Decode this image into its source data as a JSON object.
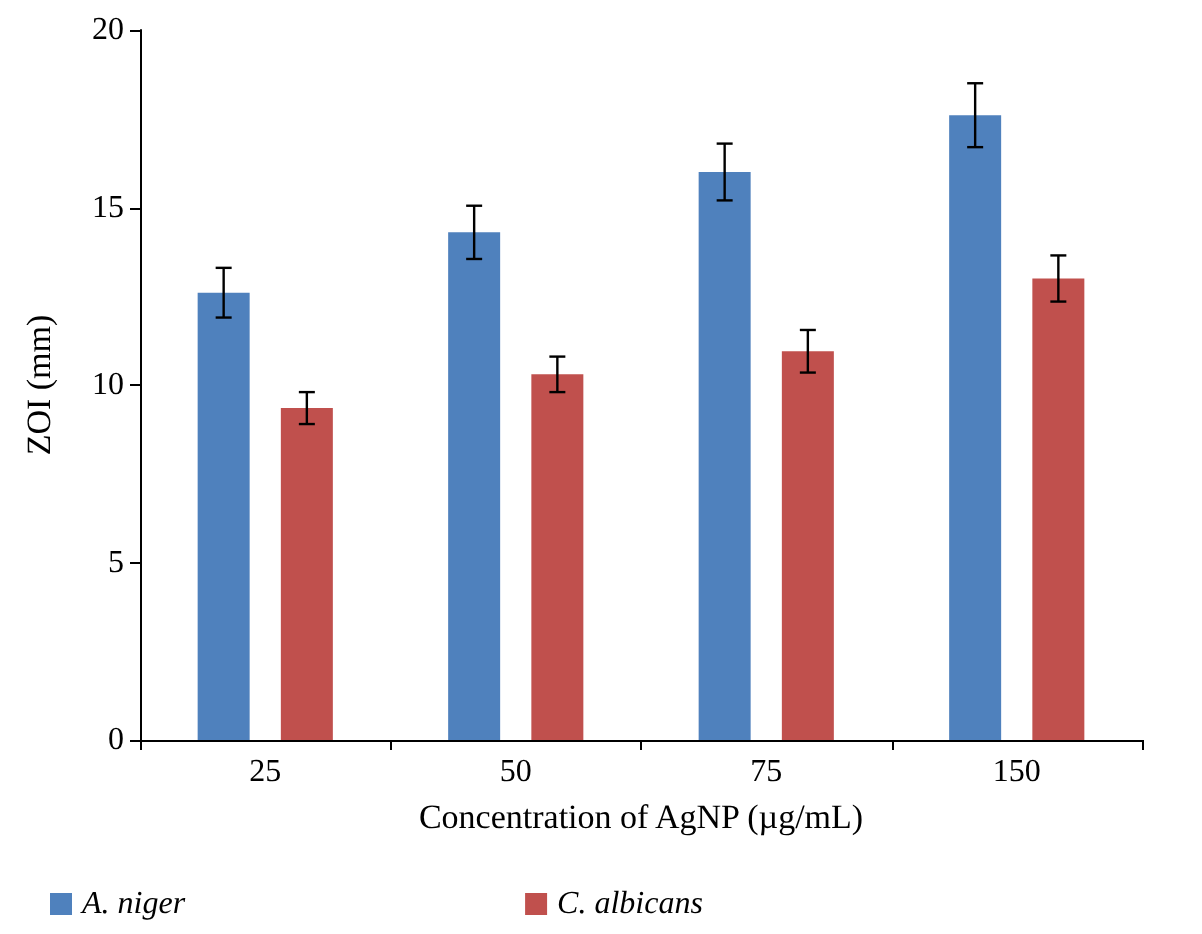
{
  "chart_data": {
    "type": "bar",
    "xlabel": "Concentration of AgNP (µg/mL)",
    "ylabel": "ZOI (mm)",
    "categories": [
      "25",
      "50",
      "75",
      "150"
    ],
    "series": [
      {
        "name": "A. niger",
        "color": "#4f81bd",
        "values": [
          12.6,
          14.3,
          16.0,
          17.6
        ],
        "errors": [
          0.7,
          0.75,
          0.8,
          0.9
        ]
      },
      {
        "name": "C. albicans",
        "color": "#c0504d",
        "values": [
          9.35,
          10.3,
          10.95,
          13.0
        ],
        "errors": [
          0.45,
          0.5,
          0.6,
          0.65
        ]
      }
    ],
    "ylim": [
      0,
      20
    ],
    "yticks": [
      0,
      5,
      10,
      15,
      20
    ],
    "grid": false,
    "legend": "bottom"
  }
}
